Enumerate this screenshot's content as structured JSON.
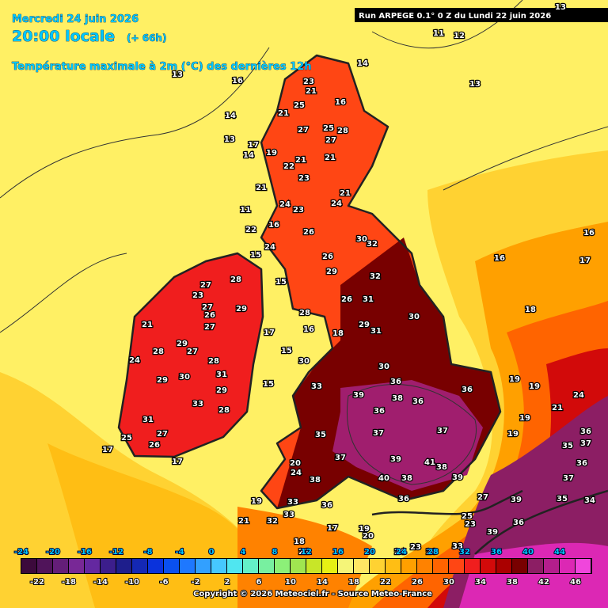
{
  "header": {
    "date": "Mercredi 24 juin 2026",
    "time": "20:00 locale",
    "lead": "(+ 66h)",
    "parameter": "Température maximale à 2m (°C) des dernières 12h",
    "run": "Run ARPEGE 0.1° 0 Z du Lundi 22 juin 2026"
  },
  "legend": {
    "top_labels": [
      -24,
      -20,
      -16,
      -12,
      -8,
      -4,
      0,
      4,
      8,
      12,
      16,
      20,
      24,
      28,
      32,
      36,
      40,
      44
    ],
    "bottom_labels": [
      -22,
      -18,
      -14,
      -10,
      -6,
      -2,
      2,
      6,
      10,
      14,
      18,
      22,
      26,
      30,
      34,
      38,
      42,
      46
    ],
    "colors": [
      "#3c0a3c",
      "#50145a",
      "#641e78",
      "#782896",
      "#6428a0",
      "#3c1e8c",
      "#1e1e8c",
      "#1428b4",
      "#0a32dc",
      "#0a50f0",
      "#1e78ff",
      "#32a0ff",
      "#46c8ff",
      "#50e6f0",
      "#64f0c8",
      "#78f0a0",
      "#8cf078",
      "#a0e650",
      "#c8e628",
      "#e6f014",
      "#f5f578",
      "#ffe664",
      "#ffd232",
      "#ffbe14",
      "#ffa000",
      "#ff8200",
      "#ff6400",
      "#ff4614",
      "#f01e1e",
      "#d20a0a",
      "#aa0000",
      "#780000",
      "#8c1e64",
      "#b41e8c",
      "#dc28b4",
      "#f046dc"
    ]
  },
  "footer": "Copyright © 2026 Meteociel.fr - Source Meteo-France",
  "map_labels": [
    13,
    14,
    13,
    12,
    11,
    13,
    16,
    23,
    21,
    16,
    25,
    21,
    14,
    27,
    25,
    28,
    27,
    13,
    17,
    19,
    14,
    21,
    21,
    22,
    23,
    21,
    21,
    24,
    24,
    23,
    11,
    16,
    22,
    26,
    30,
    32,
    24,
    15,
    26,
    29,
    32,
    15,
    26,
    31,
    28,
    30,
    29,
    16,
    31,
    18,
    17,
    15,
    30,
    30,
    36,
    15,
    33,
    36,
    39,
    38,
    36,
    36,
    37,
    35,
    37,
    37,
    39,
    41,
    38,
    20,
    24,
    39,
    40,
    38,
    38,
    36,
    33,
    36,
    19,
    33,
    32,
    21,
    17,
    19,
    18,
    21,
    20,
    24,
    23,
    28,
    33,
    25,
    23,
    27,
    39,
    39,
    36,
    35,
    34,
    37,
    36,
    37,
    35,
    36,
    19,
    19,
    21,
    24,
    19,
    19,
    18,
    16,
    17,
    16,
    28,
    27,
    23,
    27,
    29,
    26,
    21,
    27,
    29,
    28,
    27,
    28,
    24,
    29,
    30,
    31,
    29,
    33,
    28,
    31,
    27,
    25,
    26,
    17,
    17
  ]
}
